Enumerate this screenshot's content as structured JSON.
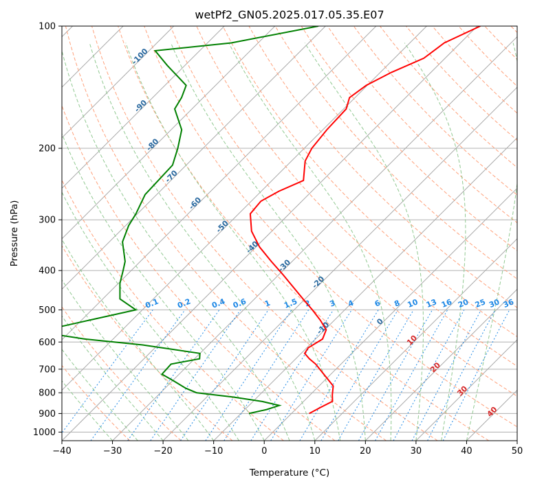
{
  "chart_data": {
    "type": "line",
    "title": "wetPf2_GN05.2025.017.05.35.E07",
    "xlabel": "Temperature (°C)",
    "ylabel": "Pressure (hPa)",
    "xlim": [
      -40,
      50
    ],
    "ylim": [
      1050,
      100
    ],
    "y_scale": "log",
    "x_ticks": [
      "−40",
      "−30",
      "−20",
      "−10",
      "0",
      "10",
      "20",
      "30",
      "40",
      "50"
    ],
    "y_ticks": [
      "100",
      "200",
      "300",
      "400",
      "500",
      "600",
      "700",
      "800",
      "900",
      "1000"
    ],
    "series": [
      {
        "role": "temperature",
        "color": "#ff0000",
        "points": [
          [
            -39.4,
            100
          ],
          [
            -43.2,
            110
          ],
          [
            -44.2,
            120
          ],
          [
            -47.8,
            130
          ],
          [
            -50.2,
            140
          ],
          [
            -51.1,
            150
          ],
          [
            -49.5,
            160
          ],
          [
            -49.2,
            180
          ],
          [
            -48.5,
            200
          ],
          [
            -47.3,
            215
          ],
          [
            -43.8,
            240
          ],
          [
            -46.5,
            255
          ],
          [
            -48.1,
            270
          ],
          [
            -47.7,
            290
          ],
          [
            -44.0,
            320
          ],
          [
            -39.3,
            350
          ],
          [
            -34.1,
            380
          ],
          [
            -29.1,
            410
          ],
          [
            -24.6,
            440
          ],
          [
            -20.4,
            470
          ],
          [
            -16.4,
            500
          ],
          [
            -12.8,
            530
          ],
          [
            -9.7,
            560
          ],
          [
            -8.6,
            590
          ],
          [
            -9.7,
            620
          ],
          [
            -9.3,
            640
          ],
          [
            -7.3,
            660
          ],
          [
            -5.0,
            680
          ],
          [
            -1.4,
            720
          ],
          [
            2.8,
            770
          ],
          [
            4.4,
            810
          ],
          [
            5.7,
            840
          ],
          [
            4.5,
            870
          ],
          [
            3.5,
            900
          ]
        ]
      },
      {
        "role": "dewpoint",
        "color": "#008000",
        "points": [
          [
            -71.4,
            100
          ],
          [
            -85.3,
            110
          ],
          [
            -98.8,
            115
          ],
          [
            -93.5,
            125
          ],
          [
            -85.8,
            140
          ],
          [
            -84.3,
            150
          ],
          [
            -83.4,
            160
          ],
          [
            -77.9,
            180
          ],
          [
            -75.0,
            200
          ],
          [
            -72.7,
            220
          ],
          [
            -72.5,
            240
          ],
          [
            -72.3,
            260
          ],
          [
            -70.3,
            290
          ],
          [
            -69.4,
            310
          ],
          [
            -67.4,
            340
          ],
          [
            -63.0,
            380
          ],
          [
            -61.6,
            400
          ],
          [
            -59.7,
            430
          ],
          [
            -56.6,
            470
          ],
          [
            -51.3,
            500
          ],
          [
            -58.4,
            530
          ],
          [
            -64.0,
            555
          ],
          [
            -64.6,
            570
          ],
          [
            -55.6,
            590
          ],
          [
            -43.0,
            610
          ],
          [
            -30.0,
            640
          ],
          [
            -29.0,
            660
          ],
          [
            -33.6,
            680
          ],
          [
            -33.4,
            720
          ],
          [
            -29.5,
            750
          ],
          [
            -25.9,
            780
          ],
          [
            -22.9,
            800
          ],
          [
            -14.7,
            820
          ],
          [
            -8.3,
            840
          ],
          [
            -4.0,
            860
          ],
          [
            -5.7,
            880
          ],
          [
            -8.4,
            900
          ]
        ]
      }
    ],
    "isotherm_labels": [
      "-100",
      "-90",
      "-80",
      "-70",
      "-60",
      "-50",
      "-40",
      "-30",
      "-20",
      "-10",
      "0",
      "10",
      "20",
      "30",
      "40"
    ],
    "mixing_ratio_labels": [
      "0.1",
      "0.2",
      "0.4",
      "0.6",
      "1",
      "1.5",
      "2",
      "3",
      "4",
      "6",
      "8",
      "10",
      "13",
      "16",
      "20",
      "25",
      "30",
      "36"
    ],
    "grid": true,
    "legend": false
  }
}
